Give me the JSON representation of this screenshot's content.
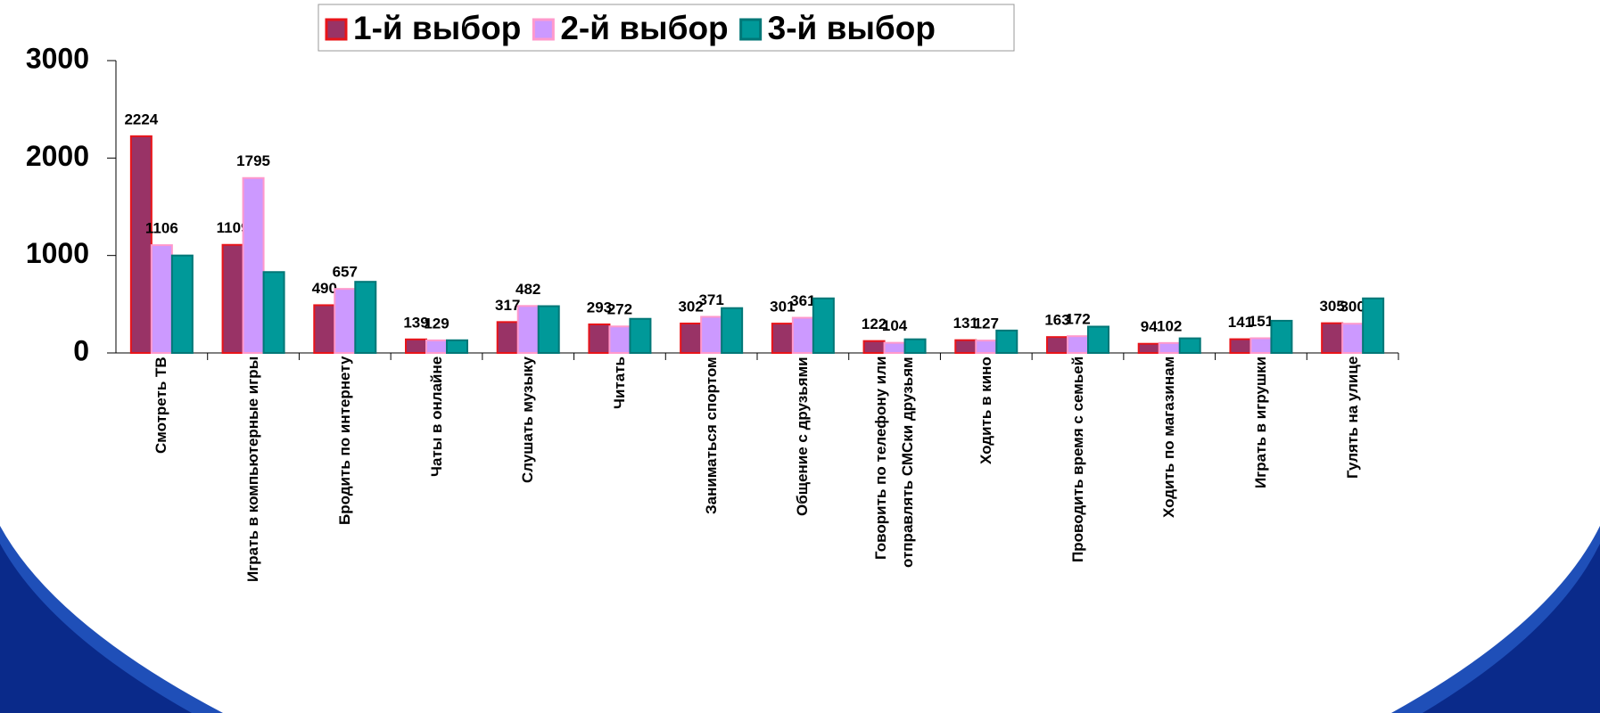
{
  "chart_data": {
    "type": "bar",
    "categories": [
      "Смотреть ТВ",
      "Играть в компьютерные игры",
      "Бродить по интернету",
      "Чаты в онлайне",
      "Слушать музыку",
      "Читать",
      "Заниматься спортом",
      "Общение с друзьями",
      "Говорить по телефону или отправлять СМСки друзьям",
      "Ходить в кино",
      "Проводить время с семьей",
      "Ходить по магазинам",
      "Играть в игрушки",
      "Гулять на улице"
    ],
    "series": [
      {
        "name": "1-й выбор",
        "color": "#993366",
        "border": "#e8141a",
        "values": [
          2224,
          1109,
          490,
          139,
          317,
          293,
          302,
          301,
          122,
          131,
          163,
          94,
          141,
          305
        ]
      },
      {
        "name": "2-й выбор",
        "color": "#cc99ff",
        "border": "#ff99cc",
        "values": [
          1106,
          1795,
          657,
          129,
          482,
          272,
          371,
          361,
          104,
          127,
          172,
          102,
          151,
          300
        ]
      },
      {
        "name": "3-й выбор",
        "color": "#009999",
        "border": "#007777",
        "values": [
          1000,
          830,
          730,
          130,
          480,
          350,
          460,
          560,
          140,
          230,
          270,
          150,
          330,
          560
        ]
      }
    ],
    "labeled_series": [
      0,
      1
    ],
    "ylim": [
      0,
      3000
    ],
    "yticks": [
      0,
      1000,
      2000,
      3000
    ],
    "grid": false
  }
}
